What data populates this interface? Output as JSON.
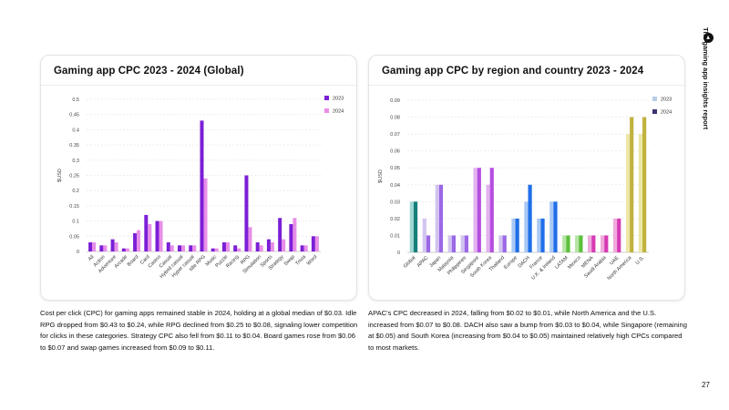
{
  "side_title": "The gaming app insights report",
  "page_number": "27",
  "left": {
    "card_title": "Gaming app CPC 2023 - 2024 (Global)",
    "description": "Cost per click (CPC) for gaming apps remained stable in 2024, holding at a global median of $0.03. Idle RPG dropped from $0.43 to $0.24, while RPG declined from $0.25 to $0.08, signaling lower competition for clicks in these categories. Strategy CPC also fell from $0.11 to $0.04. Board games rose from $0.06 to $0.07 and swap games increased from $0.09 to $0.11."
  },
  "right": {
    "card_title": "Gaming app CPC by region and country 2023 - 2024",
    "description": "APAC's CPC decreased in 2024, falling from $0.02 to $0.01, while North America and the U.S. increased from $0.07 to $0.08. DACH also saw a bump from $0.03 to $0.04, while Singapore (remaining at $0.05) and South Korea (increasing from $0.04 to $0.05) maintained relatively high CPCs compared to most markets."
  },
  "chart_data": [
    {
      "type": "bar",
      "title": "Gaming app CPC 2023 - 2024 (Global)",
      "ylabel": "$USD",
      "ylim": [
        0,
        0.5
      ],
      "yticks": [
        "0",
        "0.05",
        "0.1",
        "0.15",
        "0.2",
        "0.25",
        "0.3",
        "0.35",
        "0.4",
        "0.45",
        "0.5"
      ],
      "grid": true,
      "legend_position": "top-right",
      "categories": [
        "All",
        "Action",
        "Adventure",
        "Arcade",
        "Board",
        "Card",
        "Casino",
        "Casual",
        "Hybrid casual",
        "Hyper casual",
        "Idle RPG",
        "Music",
        "Puzzle",
        "Racing",
        "RPG",
        "Simulation",
        "Sports",
        "Strategy",
        "Swap",
        "Trivia",
        "Word"
      ],
      "series": [
        {
          "name": "2023",
          "color": "#7b1fd6",
          "values": [
            0.03,
            0.02,
            0.04,
            0.01,
            0.06,
            0.12,
            0.1,
            0.03,
            0.02,
            0.02,
            0.43,
            0.01,
            0.03,
            0.02,
            0.25,
            0.03,
            0.04,
            0.11,
            0.09,
            0.02,
            0.05
          ]
        },
        {
          "name": "2024",
          "color": "#e88ee8",
          "values": [
            0.03,
            0.02,
            0.03,
            0.01,
            0.07,
            0.09,
            0.1,
            0.02,
            0.02,
            0.02,
            0.24,
            0.01,
            0.03,
            0.01,
            0.08,
            0.02,
            0.03,
            0.04,
            0.11,
            0.02,
            0.05
          ]
        }
      ]
    },
    {
      "type": "bar",
      "title": "Gaming app CPC by region and country 2023 - 2024",
      "ylabel": "$USD",
      "ylim": [
        0,
        0.09
      ],
      "yticks": [
        "0",
        "0.01",
        "0.02",
        "0.03",
        "0.04",
        "0.05",
        "0.06",
        "0.07",
        "0.08",
        "0.09"
      ],
      "grid": true,
      "legend_position": "top-right",
      "legend_colors": {
        "2023": "#b8cde8",
        "2024": "#3a3570"
      },
      "categories": [
        "Global",
        "APAC",
        "Japan",
        "Malaysia",
        "Philippines",
        "Singapore",
        "South Korea",
        "Thailand",
        "Europe",
        "DACH",
        "France",
        "U.K. & Ireland",
        "LATAM",
        "Mexico",
        "MENA",
        "Saudi Arabia",
        "UAE",
        "North America",
        "U.S."
      ],
      "bar_colors": [
        [
          "#9fd6d4",
          "#167f7a"
        ],
        [
          "#d2c4f0",
          "#9b68e6"
        ],
        [
          "#d2c4f0",
          "#9b68e6"
        ],
        [
          "#d2c4f0",
          "#9b68e6"
        ],
        [
          "#d2c4f0",
          "#9b68e6"
        ],
        [
          "#e3b2f0",
          "#b54fe0"
        ],
        [
          "#e3b2f0",
          "#b54fe0"
        ],
        [
          "#d2c4f0",
          "#9b68e6"
        ],
        [
          "#a9c9f4",
          "#1f6fe8"
        ],
        [
          "#a9c9f4",
          "#1f6fe8"
        ],
        [
          "#a9c9f4",
          "#1f6fe8"
        ],
        [
          "#a9c9f4",
          "#1f6fe8"
        ],
        [
          "#b5e4a4",
          "#5cbf3a"
        ],
        [
          "#b5e4a4",
          "#5cbf3a"
        ],
        [
          "#f0a9dc",
          "#d63ab4"
        ],
        [
          "#f0a9dc",
          "#d63ab4"
        ],
        [
          "#f0a9dc",
          "#d63ab4"
        ],
        [
          "#ece6a8",
          "#c1b23e"
        ],
        [
          "#ece6a8",
          "#c1b23e"
        ]
      ],
      "series": [
        {
          "name": "2023",
          "values": [
            0.03,
            0.02,
            0.04,
            0.01,
            0.01,
            0.05,
            0.04,
            0.01,
            0.02,
            0.03,
            0.02,
            0.03,
            0.01,
            0.01,
            0.01,
            0.01,
            0.02,
            0.07,
            0.07
          ]
        },
        {
          "name": "2024",
          "values": [
            0.03,
            0.01,
            0.04,
            0.01,
            0.01,
            0.05,
            0.05,
            0.01,
            0.02,
            0.04,
            0.02,
            0.03,
            0.01,
            0.01,
            0.01,
            0.01,
            0.02,
            0.08,
            0.08
          ]
        }
      ]
    }
  ]
}
